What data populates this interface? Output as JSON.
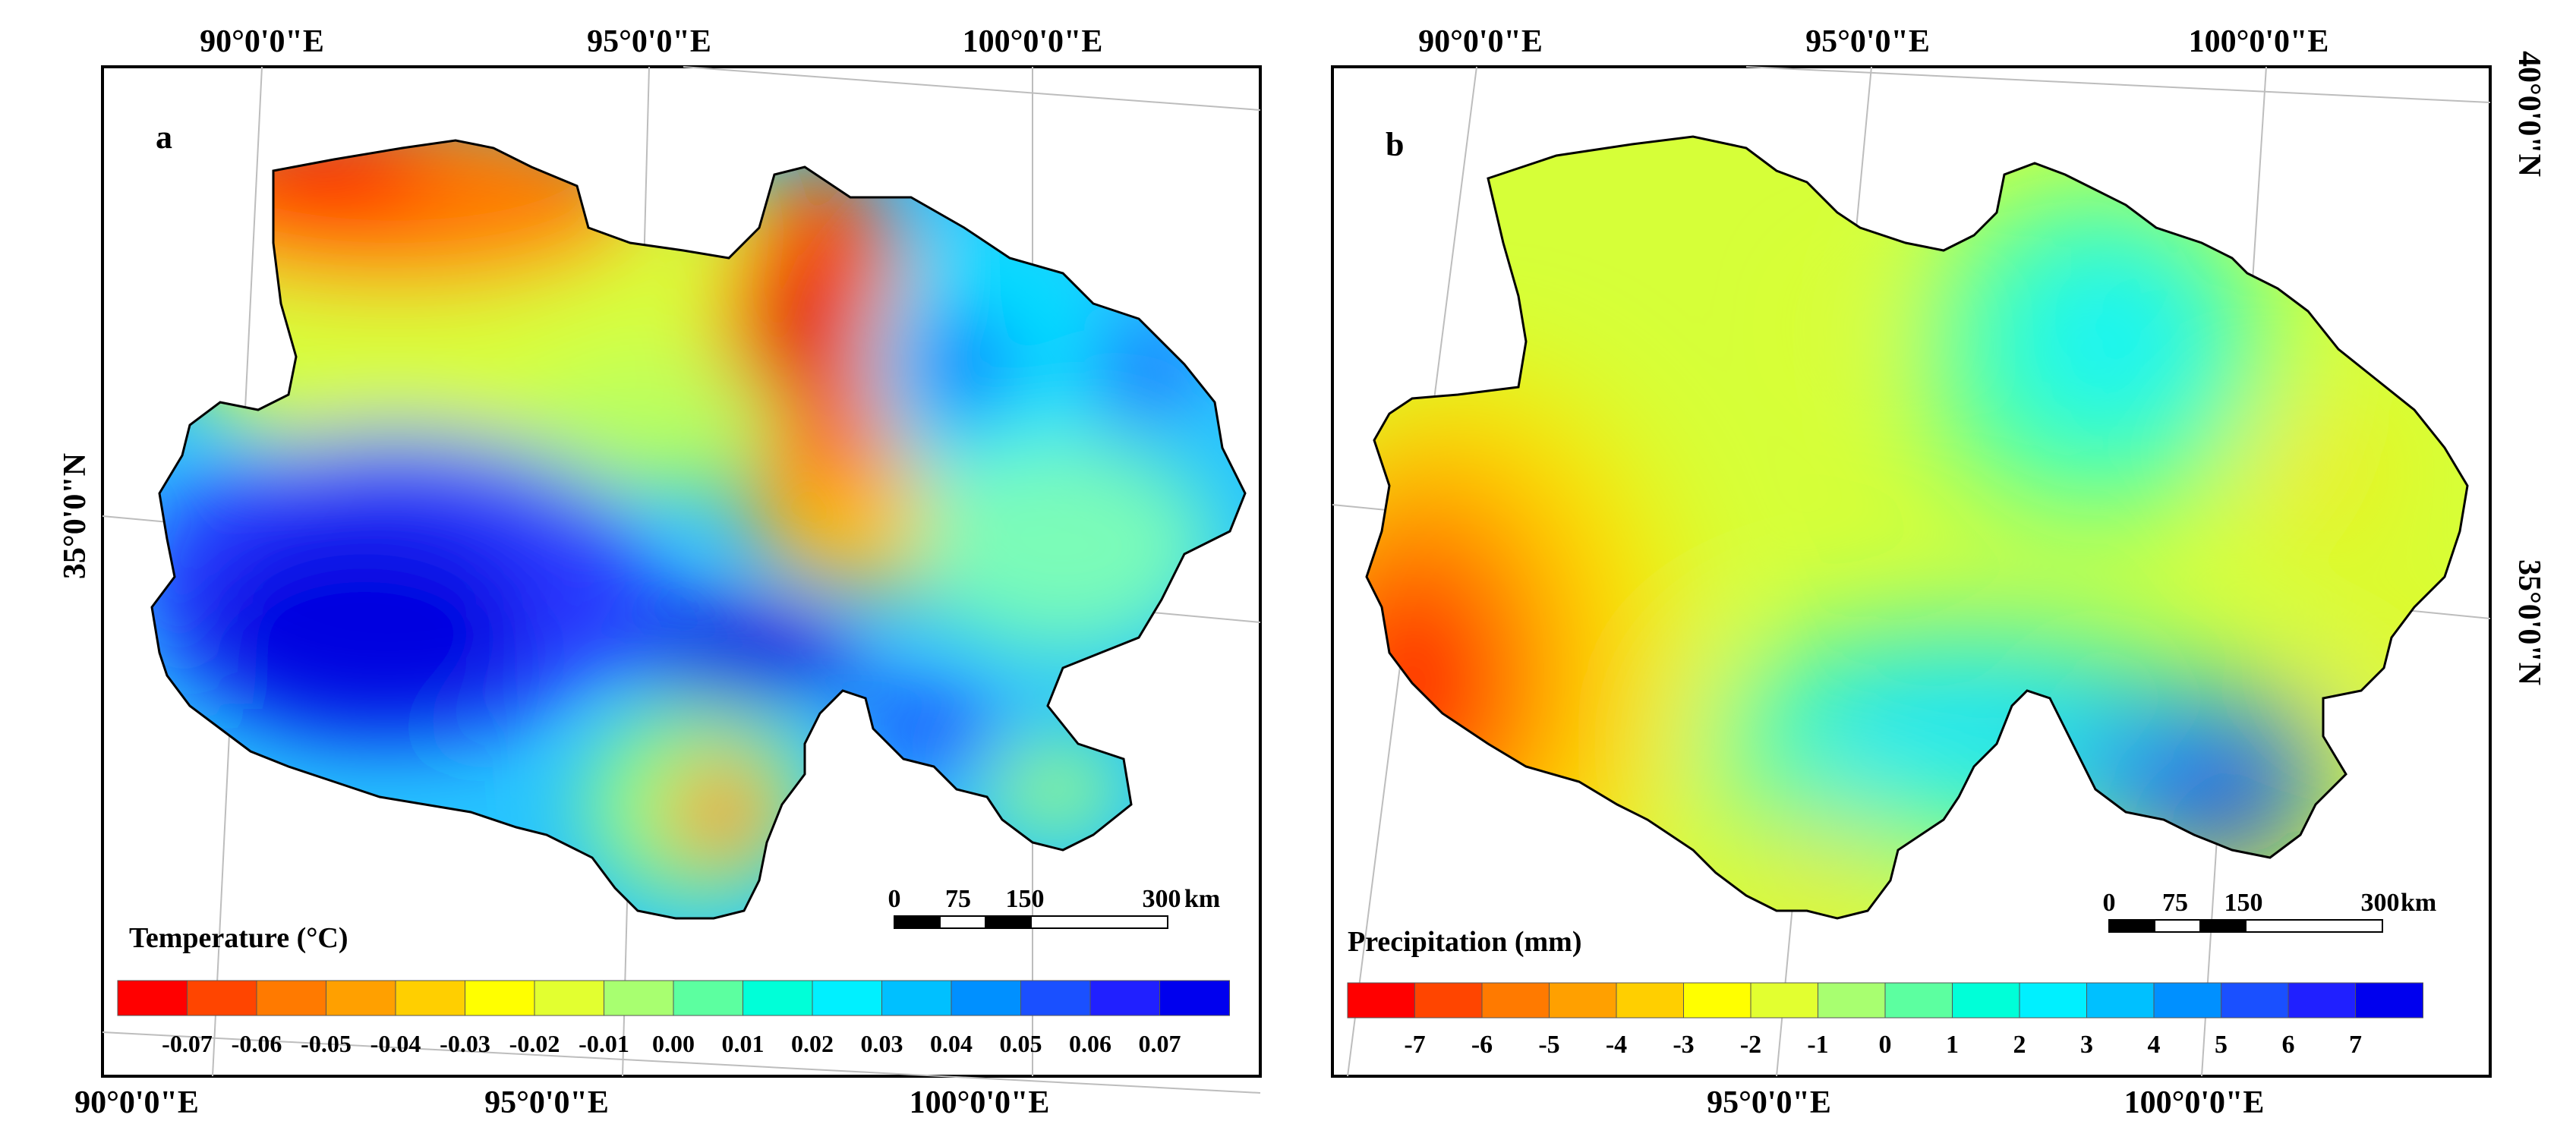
{
  "panels": [
    {
      "id": "a",
      "label": "a",
      "legend_title": "Temperature (°C)",
      "legend_colors": [
        "#ff0000",
        "#ff4500",
        "#ff7a00",
        "#ffa000",
        "#ffcf00",
        "#ffff00",
        "#e2ff30",
        "#a8ff70",
        "#5cffa0",
        "#00ffd8",
        "#00f0ff",
        "#00c0ff",
        "#0090ff",
        "#1a50ff",
        "#2020ff",
        "#0000ee"
      ],
      "legend_ticks": [
        "-0.07",
        "-0.06",
        "-0.05",
        "-0.04",
        "-0.03",
        "-0.02",
        "-0.01",
        "0.00",
        "0.01",
        "0.02",
        "0.03",
        "0.04",
        "0.05",
        "0.06",
        "0.07"
      ],
      "top_axis_labels": [
        "90°0'0\"E",
        "95°0'0\"E",
        "100°0'0\"E"
      ],
      "bottom_axis_labels": [
        "90°0'0\"E",
        "95°0'0\"E",
        "100°0'0\"E"
      ],
      "left_axis_label": "35°0'0\"N",
      "scale_bar": {
        "ticks": [
          "0",
          "75",
          "150",
          "300"
        ],
        "unit": "km"
      }
    },
    {
      "id": "b",
      "label": "b",
      "legend_title": "Precipitation (mm)",
      "legend_colors": [
        "#ff0000",
        "#ff4500",
        "#ff7a00",
        "#ffa000",
        "#ffcf00",
        "#ffff00",
        "#e2ff30",
        "#a8ff70",
        "#5cffa0",
        "#00ffd8",
        "#00f0ff",
        "#00c0ff",
        "#0090ff",
        "#1a50ff",
        "#2020ff",
        "#0000ee"
      ],
      "legend_ticks": [
        "-7",
        "-6",
        "-5",
        "-4",
        "-3",
        "-2",
        "-1",
        "0",
        "1",
        "2",
        "3",
        "4",
        "5",
        "6",
        "7"
      ],
      "top_axis_labels": [
        "90°0'0\"E",
        "95°0'0\"E",
        "100°0'0\"E"
      ],
      "bottom_axis_labels": [
        "95°0'0\"E",
        "100°0'0\"E"
      ],
      "right_axis_labels": [
        "40°0'0\"N",
        "35°0'0\"N"
      ],
      "scale_bar": {
        "ticks": [
          "0",
          "75",
          "150",
          "300"
        ],
        "unit": "km"
      }
    }
  ]
}
